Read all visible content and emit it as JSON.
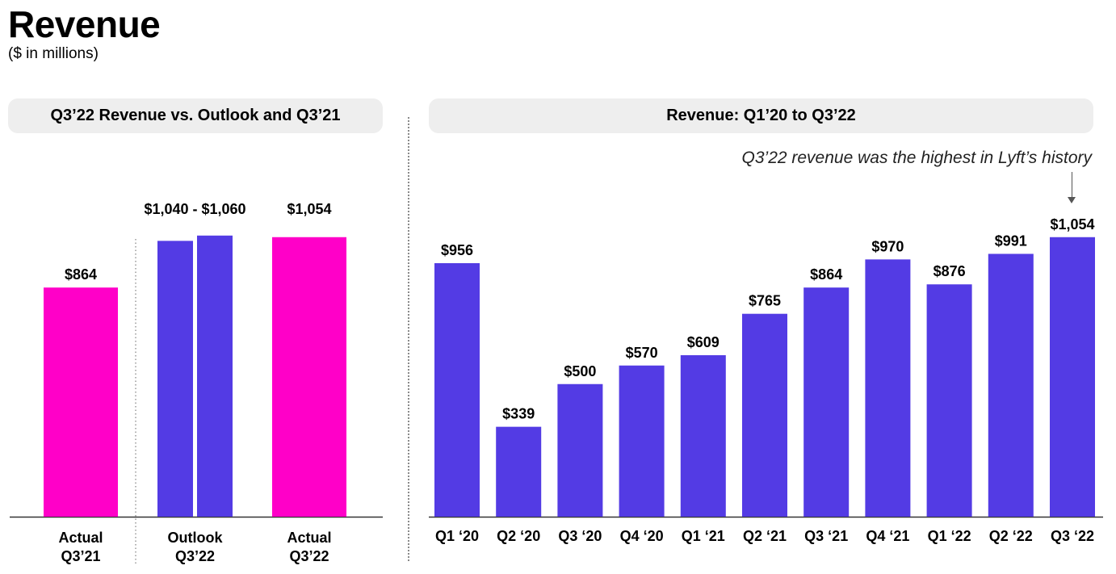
{
  "header": {
    "title": "Revenue",
    "subtitle": "($ in millions)"
  },
  "left_panel": {
    "title": "Q3’22 Revenue vs. Outlook and Q3’21"
  },
  "right_panel": {
    "title": "Revenue: Q1’20 to Q3’22",
    "annotation": "Q3’22 revenue was the highest in Lyft’s history"
  },
  "colors": {
    "actual": "#ff00c8",
    "outlook": "#533be4",
    "history": "#533be4",
    "pill_bg": "#eeeeee"
  },
  "chart_data": [
    {
      "type": "bar",
      "title": "Q3’22 Revenue vs. Outlook and Q3’21",
      "ylim": [
        0,
        1100
      ],
      "bars": [
        {
          "category": [
            "Actual",
            "Q3’21"
          ],
          "values": [
            864
          ],
          "label": "$864",
          "color": "actual"
        },
        {
          "category": [
            "Outlook",
            "Q3’22"
          ],
          "values": [
            1040,
            1060
          ],
          "label": "$1,040 - $1,060",
          "color": "outlook"
        },
        {
          "category": [
            "Actual",
            "Q3’22"
          ],
          "values": [
            1054
          ],
          "label": "$1,054",
          "color": "actual"
        }
      ]
    },
    {
      "type": "bar",
      "title": "Revenue: Q1’20 to Q3’22",
      "ylim": [
        0,
        1100
      ],
      "categories": [
        "Q1 ‘20",
        "Q2 ‘20",
        "Q3 ‘20",
        "Q4 ‘20",
        "Q1 ‘21",
        "Q2 ‘21",
        "Q3 ‘21",
        "Q4 ‘21",
        "Q1 ‘22",
        "Q2 ‘22",
        "Q3 ‘22"
      ],
      "values": [
        956,
        339,
        500,
        570,
        609,
        765,
        864,
        970,
        876,
        991,
        1054
      ],
      "labels": [
        "$956",
        "$339",
        "$500",
        "$570",
        "$609",
        "$765",
        "$864",
        "$970",
        "$876",
        "$991",
        "$1,054"
      ]
    }
  ]
}
